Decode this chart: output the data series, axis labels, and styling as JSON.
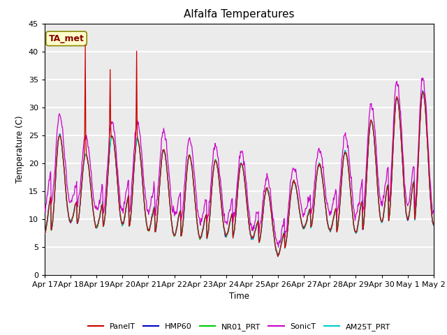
{
  "title": "Alfalfa Temperatures",
  "xlabel": "Time",
  "ylabel": "Temperature (C)",
  "ylim": [
    0,
    45
  ],
  "annotation": "TA_met",
  "background_color": "#ebebeb",
  "grid_color": "white",
  "colors": {
    "PanelT": "#cc0000",
    "HMP60": "#0000cc",
    "NR01_PRT": "#00cc00",
    "SonicT": "#cc00cc",
    "AM25T_PRT": "#00cccc"
  },
  "x_tick_labels": [
    "Apr 17",
    "Apr 18",
    "Apr 19",
    "Apr 20",
    "Apr 21",
    "Apr 22",
    "Apr 23",
    "Apr 24",
    "Apr 25",
    "Apr 26",
    "Apr 27",
    "Apr 28",
    "Apr 29",
    "Apr 30",
    "May 1",
    "May 2"
  ],
  "legend_labels": [
    "PanelT",
    "HMP60",
    "NR01_PRT",
    "SonicT",
    "AM25T_PRT"
  ]
}
